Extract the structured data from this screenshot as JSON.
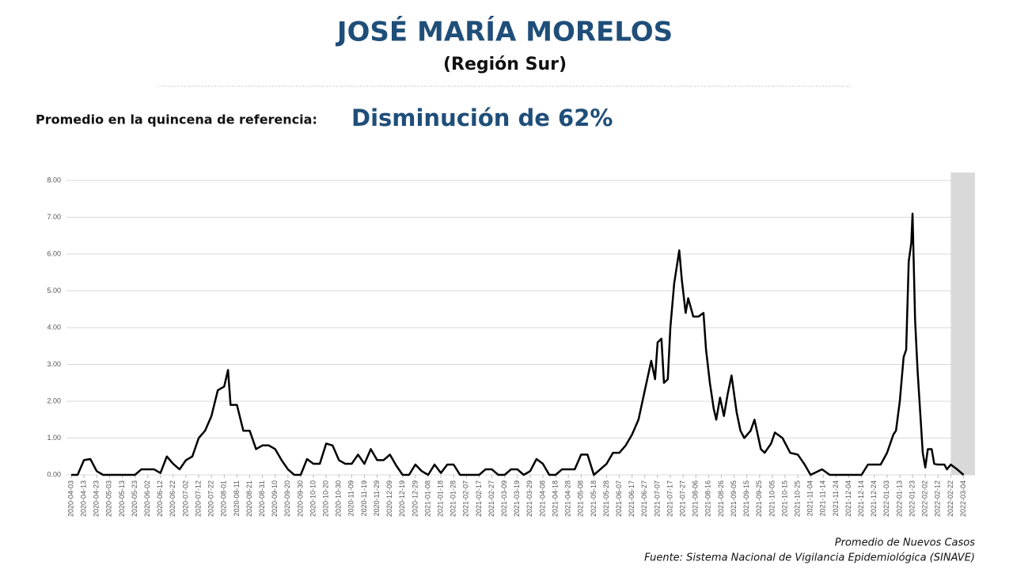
{
  "chart_data": {
    "type": "line",
    "title": "JOSÉ MARÍA MORELOS",
    "subtitle": "(Región Sur)",
    "reference_label": "Promedio en la quincena de referencia:",
    "headline": "Disminución de 62%",
    "series_label": "Promedio de Nuevos Casos",
    "source": "Fuente: Sistema Nacional de Vigilancia Epidemiológica (SINAVE)",
    "color": "#000000",
    "grid": true,
    "shaded_range": [
      "2022-02-22",
      "2022-03-13"
    ],
    "xlim": [
      "2020-04-03",
      "2022-03-13"
    ],
    "ylim": [
      0,
      8
    ],
    "yticks": [
      {
        "value": 0,
        "label": "0.00"
      },
      {
        "value": 1,
        "label": "1.00"
      },
      {
        "value": 2,
        "label": "2.00"
      },
      {
        "value": 3,
        "label": "3.00"
      },
      {
        "value": 4,
        "label": "4.00"
      },
      {
        "value": 5,
        "label": "5.00"
      },
      {
        "value": 6,
        "label": "6.00"
      },
      {
        "value": 7,
        "label": "7.00"
      },
      {
        "value": 8,
        "label": "8.00"
      }
    ],
    "xticks": [
      "2020-04-03",
      "2020-04-13",
      "2020-04-23",
      "2020-05-03",
      "2020-05-13",
      "2020-05-23",
      "2020-06-02",
      "2020-06-12",
      "2020-06-22",
      "2020-07-02",
      "2020-07-12",
      "2020-07-22",
      "2020-08-01",
      "2020-08-11",
      "2020-08-21",
      "2020-08-31",
      "2020-09-10",
      "2020-09-20",
      "2020-09-30",
      "2020-10-10",
      "2020-10-20",
      "2020-10-30",
      "2020-11-09",
      "2020-11-19",
      "2020-11-29",
      "2020-12-09",
      "2020-12-19",
      "2020-12-29",
      "2021-01-08",
      "2021-01-18",
      "2021-01-28",
      "2021-02-07",
      "2021-02-17",
      "2021-02-27",
      "2021-03-09",
      "2021-03-19",
      "2021-03-29",
      "2021-04-08",
      "2021-04-18",
      "2021-04-28",
      "2021-05-08",
      "2021-05-18",
      "2021-05-28",
      "2021-06-07",
      "2021-06-17",
      "2021-06-27",
      "2021-07-07",
      "2021-07-17",
      "2021-07-27",
      "2021-08-06",
      "2021-08-16",
      "2021-08-26",
      "2021-09-05",
      "2021-09-15",
      "2021-09-25",
      "2021-10-05",
      "2021-10-15",
      "2021-10-25",
      "2021-11-04",
      "2021-11-14",
      "2021-11-24",
      "2021-12-04",
      "2021-12-14",
      "2021-12-24",
      "2022-01-03",
      "2022-01-13",
      "2022-01-23",
      "2022-02-02",
      "2022-02-12",
      "2022-02-22",
      "2022-03-04"
    ],
    "x": [
      "2020-04-03",
      "2020-04-08",
      "2020-04-13",
      "2020-04-18",
      "2020-04-23",
      "2020-04-28",
      "2020-05-03",
      "2020-05-08",
      "2020-05-13",
      "2020-05-18",
      "2020-05-23",
      "2020-05-28",
      "2020-06-02",
      "2020-06-07",
      "2020-06-12",
      "2020-06-17",
      "2020-06-22",
      "2020-06-27",
      "2020-07-02",
      "2020-07-07",
      "2020-07-12",
      "2020-07-17",
      "2020-07-22",
      "2020-07-27",
      "2020-08-01",
      "2020-08-04",
      "2020-08-06",
      "2020-08-11",
      "2020-08-16",
      "2020-08-21",
      "2020-08-26",
      "2020-08-31",
      "2020-09-05",
      "2020-09-10",
      "2020-09-15",
      "2020-09-20",
      "2020-09-25",
      "2020-09-30",
      "2020-10-05",
      "2020-10-10",
      "2020-10-15",
      "2020-10-20",
      "2020-10-25",
      "2020-10-30",
      "2020-11-04",
      "2020-11-09",
      "2020-11-14",
      "2020-11-19",
      "2020-11-24",
      "2020-11-29",
      "2020-12-04",
      "2020-12-09",
      "2020-12-14",
      "2020-12-19",
      "2020-12-24",
      "2020-12-29",
      "2021-01-03",
      "2021-01-08",
      "2021-01-13",
      "2021-01-18",
      "2021-01-23",
      "2021-01-28",
      "2021-02-02",
      "2021-02-07",
      "2021-02-12",
      "2021-02-17",
      "2021-02-22",
      "2021-02-27",
      "2021-03-04",
      "2021-03-09",
      "2021-03-14",
      "2021-03-19",
      "2021-03-24",
      "2021-03-29",
      "2021-04-03",
      "2021-04-08",
      "2021-04-13",
      "2021-04-18",
      "2021-04-23",
      "2021-04-28",
      "2021-05-03",
      "2021-05-08",
      "2021-05-13",
      "2021-05-18",
      "2021-05-23",
      "2021-05-28",
      "2021-06-02",
      "2021-06-07",
      "2021-06-12",
      "2021-06-17",
      "2021-06-22",
      "2021-06-27",
      "2021-07-02",
      "2021-07-05",
      "2021-07-07",
      "2021-07-10",
      "2021-07-12",
      "2021-07-15",
      "2021-07-17",
      "2021-07-20",
      "2021-07-24",
      "2021-07-26",
      "2021-07-29",
      "2021-07-31",
      "2021-08-04",
      "2021-08-08",
      "2021-08-12",
      "2021-08-14",
      "2021-08-17",
      "2021-08-20",
      "2021-08-22",
      "2021-08-25",
      "2021-08-28",
      "2021-08-31",
      "2021-09-03",
      "2021-09-07",
      "2021-09-10",
      "2021-09-13",
      "2021-09-18",
      "2021-09-21",
      "2021-09-26",
      "2021-09-29",
      "2021-10-04",
      "2021-10-07",
      "2021-10-13",
      "2021-10-19",
      "2021-10-25",
      "2021-10-30",
      "2021-11-04",
      "2021-11-13",
      "2021-11-19",
      "2021-11-24",
      "2021-12-04",
      "2021-12-14",
      "2021-12-19",
      "2021-12-24",
      "2021-12-29",
      "2022-01-03",
      "2022-01-08",
      "2022-01-10",
      "2022-01-13",
      "2022-01-16",
      "2022-01-18",
      "2022-01-20",
      "2022-01-22",
      "2022-01-23",
      "2022-01-25",
      "2022-01-27",
      "2022-01-29",
      "2022-01-31",
      "2022-02-02",
      "2022-02-04",
      "2022-02-07",
      "2022-02-09",
      "2022-02-12",
      "2022-02-17",
      "2022-02-19",
      "2022-02-22",
      "2022-02-27",
      "2022-03-04"
    ],
    "values": [
      0,
      0,
      0.4,
      0.43,
      0.1,
      0,
      0,
      0,
      0,
      0,
      0,
      0.15,
      0.15,
      0.15,
      0.05,
      0.5,
      0.3,
      0.15,
      0.4,
      0.5,
      1.0,
      1.2,
      1.6,
      2.3,
      2.4,
      2.85,
      1.9,
      1.9,
      1.2,
      1.2,
      0.7,
      0.8,
      0.8,
      0.7,
      0.4,
      0.15,
      0,
      0,
      0.43,
      0.3,
      0.3,
      0.85,
      0.8,
      0.4,
      0.3,
      0.3,
      0.55,
      0.3,
      0.7,
      0.4,
      0.4,
      0.55,
      0.25,
      0,
      0,
      0.28,
      0.1,
      0,
      0.28,
      0.05,
      0.28,
      0.28,
      0,
      0,
      0,
      0,
      0.15,
      0.15,
      0,
      0,
      0.15,
      0.15,
      0,
      0.1,
      0.43,
      0.3,
      0,
      0,
      0.15,
      0.15,
      0.15,
      0.55,
      0.55,
      0,
      0.15,
      0.3,
      0.6,
      0.6,
      0.8,
      1.1,
      1.5,
      2.3,
      3.1,
      2.6,
      3.6,
      3.7,
      2.5,
      2.6,
      4.0,
      5.2,
      6.1,
      5.3,
      4.4,
      4.8,
      4.3,
      4.3,
      4.4,
      3.4,
      2.5,
      1.8,
      1.5,
      2.1,
      1.6,
      2.2,
      2.7,
      1.7,
      1.2,
      1.0,
      1.2,
      1.5,
      0.7,
      0.6,
      0.85,
      1.15,
      1.0,
      0.6,
      0.55,
      0.3,
      0,
      0.15,
      0,
      0,
      0,
      0,
      0.28,
      0.28,
      0.28,
      0.6,
      1.1,
      1.2,
      2.0,
      3.2,
      3.4,
      5.8,
      6.3,
      7.1,
      4.2,
      2.8,
      1.7,
      0.6,
      0.2,
      0.7,
      0.7,
      0.3,
      0.28,
      0.28,
      0.15,
      0.28,
      0.15,
      0
    ]
  }
}
